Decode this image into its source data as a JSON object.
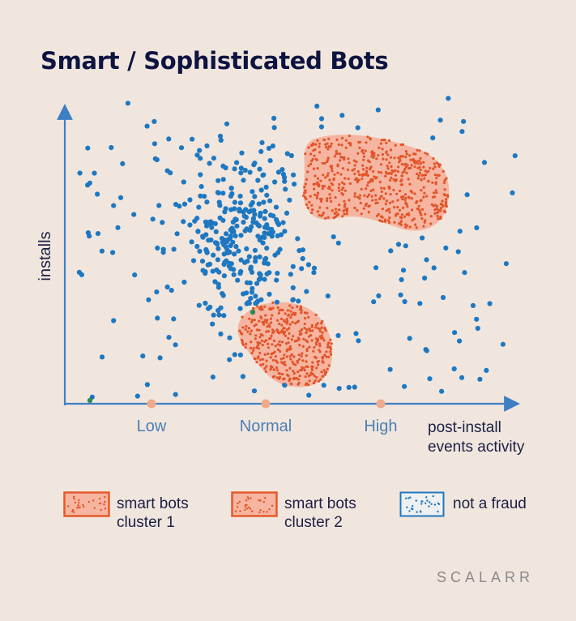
{
  "title": "Smart / Sophisticated Bots",
  "chart_data": {
    "type": "scatter",
    "ylabel": "installs",
    "xlabel": "post-install events activity",
    "x_ticks": [
      "Low",
      "Normal",
      "High"
    ],
    "grid": false,
    "regions": [
      {
        "name": "smart bots cluster 1",
        "location": "upper right, high installs, normal-to-high activity"
      },
      {
        "name": "smart bots cluster 2",
        "location": "lower middle, low installs, normal activity"
      }
    ],
    "series": [
      {
        "name": "not a fraud",
        "distribution": "dense around Normal activity at mid-to-high installs"
      }
    ]
  },
  "legend": [
    {
      "label": "smart bots\ncluster 1",
      "swatch": "cluster"
    },
    {
      "label": "smart bots\ncluster 2",
      "swatch": "cluster"
    },
    {
      "label": "not a fraud",
      "swatch": "dots"
    }
  ],
  "brand": "SCALARR",
  "colors": {
    "background": "#f1e6de",
    "axis": "#3d7fc3",
    "tick_marker": "#f0a98a",
    "tick_label": "#4a7fb5",
    "cluster_fill": "#f6b5a0",
    "cluster_dot": "#e2542a",
    "cluster_outline": "#e45a2c",
    "not_fraud_dot": "#1d78c1",
    "title": "#0d1440",
    "text": "#1b2045"
  }
}
